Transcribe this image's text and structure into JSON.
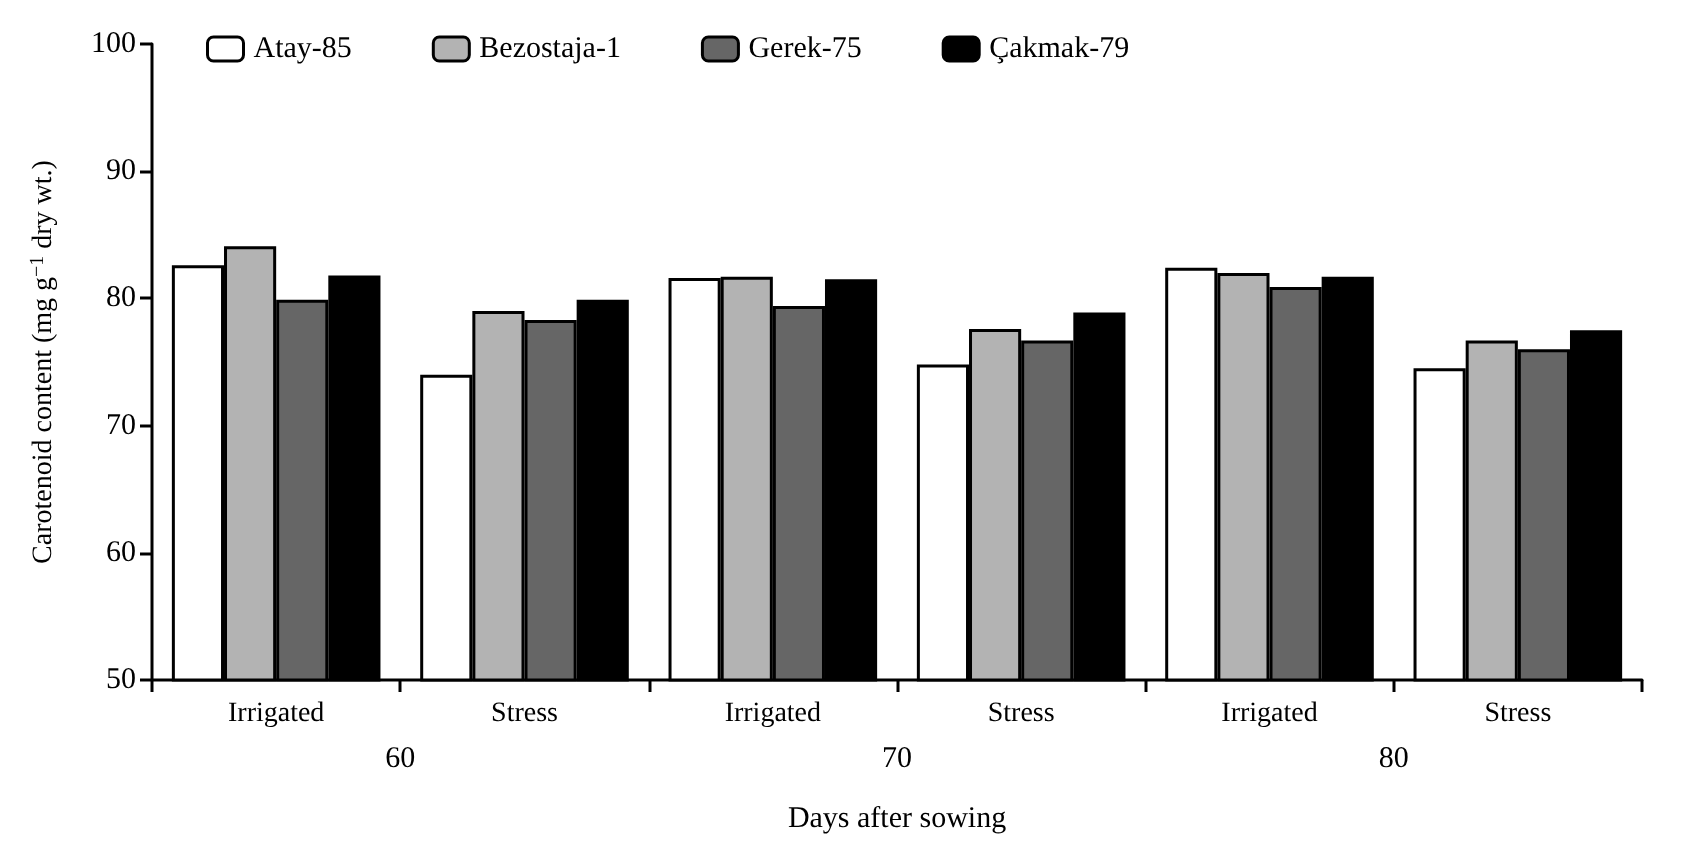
{
  "chart_data": {
    "type": "bar",
    "xlabel": "Days after sowing",
    "ylabel": "Carotenoid content (mg g$^{−1}$ dry wt.)",
    "categories": [
      "Irrigated",
      "Stress",
      "Irrigated",
      "Stress",
      "Irrigated",
      "Stress"
    ],
    "annotations": [
      "60",
      "70",
      "80"
    ],
    "series": [
      {
        "name": "Atay-85",
        "color": "#ffffff",
        "values": [
          82.6,
          74.0,
          81.6,
          74.8,
          82.4,
          74.5
        ]
      },
      {
        "name": "Bezostaja-1",
        "color": "#b3b3b3",
        "values": [
          84.1,
          79.0,
          81.7,
          77.6,
          82.0,
          76.7
        ]
      },
      {
        "name": "Gerek-75",
        "color": "#666666",
        "values": [
          79.9,
          78.3,
          79.4,
          76.7,
          80.9,
          76.0
        ]
      },
      {
        "name": "Çakmak-79",
        "color": "#000000",
        "values": [
          81.8,
          79.9,
          81.5,
          78.9,
          81.7,
          77.5
        ]
      }
    ],
    "ylim": [
      50,
      100
    ],
    "yticks": [
      50,
      60,
      70,
      80,
      90,
      100
    ],
    "grid": false,
    "legend": "top left"
  }
}
